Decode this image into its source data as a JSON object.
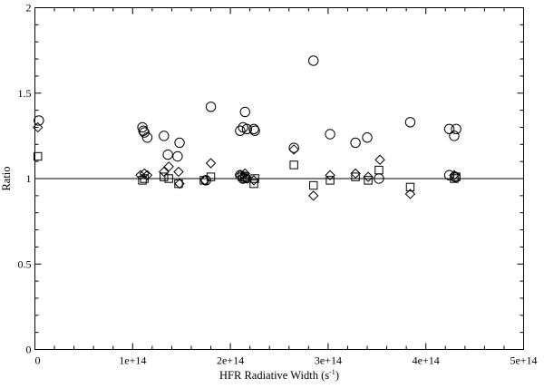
{
  "chart_data": {
    "type": "scatter",
    "xlabel": "HFR Radiative Width (s",
    "xlabel_sup": "-1",
    "xlabel_close": ")",
    "ylabel": "Ratio",
    "xlim": [
      0,
      500000000000000.0
    ],
    "ylim": [
      0,
      2
    ],
    "x_ticks": [
      {
        "value": 0,
        "label": "0"
      },
      {
        "value": 100000000000000.0,
        "label": "1e+14"
      },
      {
        "value": 200000000000000.0,
        "label": "2e+14"
      },
      {
        "value": 300000000000000.0,
        "label": "3e+14"
      },
      {
        "value": 400000000000000.0,
        "label": "4e+14"
      },
      {
        "value": 500000000000000.0,
        "label": "5e+14"
      }
    ],
    "y_ticks": [
      {
        "value": 0,
        "label": "0"
      },
      {
        "value": 0.5,
        "label": "0.5"
      },
      {
        "value": 1,
        "label": "1"
      },
      {
        "value": 1.5,
        "label": "1.5"
      },
      {
        "value": 2,
        "label": "2"
      }
    ],
    "reference_line_y": 1.0,
    "grid": false,
    "series": [
      {
        "marker": "circle",
        "points": [
          [
            4000000000000.0,
            1.34
          ],
          [
            110000000000000.0,
            1.3
          ],
          [
            111000000000000.0,
            1.28
          ],
          [
            112000000000000.0,
            1.27
          ],
          [
            115000000000000.0,
            1.24
          ],
          [
            132000000000000.0,
            1.25
          ],
          [
            136000000000000.0,
            1.14
          ],
          [
            146000000000000.0,
            1.13
          ],
          [
            148000000000000.0,
            1.21
          ],
          [
            180000000000000.0,
            1.42
          ],
          [
            210000000000000.0,
            1.28
          ],
          [
            213000000000000.0,
            1.3
          ],
          [
            215000000000000.0,
            1.39
          ],
          [
            217000000000000.0,
            1.29
          ],
          [
            224000000000000.0,
            1.29
          ],
          [
            225000000000000.0,
            1.28
          ],
          [
            265000000000000.0,
            1.18
          ],
          [
            285000000000000.0,
            1.69
          ],
          [
            302000000000000.0,
            1.26
          ],
          [
            328000000000000.0,
            1.21
          ],
          [
            340000000000000.0,
            1.24
          ],
          [
            352000000000000.0,
            1.0
          ],
          [
            384000000000000.0,
            1.33
          ],
          [
            424000000000000.0,
            1.29
          ],
          [
            429000000000000.0,
            1.25
          ],
          [
            431000000000000.0,
            1.29
          ],
          [
            175000000000000.0,
            0.99
          ],
          [
            210000000000000.0,
            1.02
          ],
          [
            213000000000000.0,
            1.0
          ],
          [
            215000000000000.0,
            1.01
          ],
          [
            424000000000000.0,
            1.02
          ],
          [
            430000000000000.0,
            1.01
          ]
        ]
      },
      {
        "marker": "diamond",
        "points": [
          [
            3000000000000.0,
            1.3
          ],
          [
            108000000000000.0,
            1.02
          ],
          [
            112000000000000.0,
            1.03
          ],
          [
            115000000000000.0,
            1.02
          ],
          [
            132000000000000.0,
            1.04
          ],
          [
            137000000000000.0,
            1.07
          ],
          [
            147000000000000.0,
            1.04
          ],
          [
            148000000000000.0,
            0.97
          ],
          [
            174000000000000.0,
            0.99
          ],
          [
            180000000000000.0,
            1.09
          ],
          [
            210000000000000.0,
            1.02
          ],
          [
            215000000000000.0,
            1.03
          ],
          [
            217000000000000.0,
            1.0
          ],
          [
            224000000000000.0,
            0.99
          ],
          [
            265000000000000.0,
            1.17
          ],
          [
            285000000000000.0,
            0.9
          ],
          [
            302000000000000.0,
            1.02
          ],
          [
            328000000000000.0,
            1.03
          ],
          [
            341000000000000.0,
            1.01
          ],
          [
            353000000000000.0,
            1.11
          ],
          [
            384000000000000.0,
            0.91
          ],
          [
            429000000000000.0,
            1.02
          ]
        ]
      },
      {
        "marker": "square",
        "points": [
          [
            3000000000000.0,
            1.13
          ],
          [
            110000000000000.0,
            0.99
          ],
          [
            112000000000000.0,
            1.0
          ],
          [
            132000000000000.0,
            1.01
          ],
          [
            137000000000000.0,
            1.0
          ],
          [
            147000000000000.0,
            0.97
          ],
          [
            173000000000000.0,
            0.99
          ],
          [
            180000000000000.0,
            1.01
          ],
          [
            212000000000000.0,
            1.01
          ],
          [
            215000000000000.0,
            1.0
          ],
          [
            224000000000000.0,
            0.97
          ],
          [
            225000000000000.0,
            1.0
          ],
          [
            265000000000000.0,
            1.08
          ],
          [
            285000000000000.0,
            0.96
          ],
          [
            302000000000000.0,
            0.99
          ],
          [
            328000000000000.0,
            1.01
          ],
          [
            341000000000000.0,
            0.99
          ],
          [
            352000000000000.0,
            1.05
          ],
          [
            384000000000000.0,
            0.95
          ],
          [
            429000000000000.0,
            1.0
          ],
          [
            431000000000000.0,
            1.01
          ]
        ]
      }
    ]
  }
}
